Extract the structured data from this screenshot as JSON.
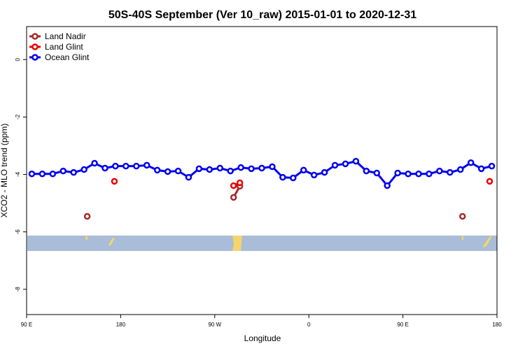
{
  "chart_data": {
    "type": "line",
    "title": "50S-40S September (Ver 10_raw)   2015-01-01 to 2020-12-31",
    "xlabel": "Longitude",
    "ylabel": "XCO2 - MLO trend (ppm)",
    "xlim": [
      90,
      540
    ],
    "ylim": [
      -8.88,
      1.15
    ],
    "xticks": [
      {
        "value": 90,
        "label": "90 E"
      },
      {
        "value": 180,
        "label": "180"
      },
      {
        "value": 270,
        "label": "90 W"
      },
      {
        "value": 360,
        "label": "0"
      },
      {
        "value": 450,
        "label": "90 E"
      },
      {
        "value": 540,
        "label": "180"
      }
    ],
    "yticks": [
      0,
      -2,
      -4,
      -6,
      -8
    ],
    "legend": "top-left",
    "series": [
      {
        "name": "Land Nadir",
        "color": "#a52a2a",
        "x": [
          148,
          288,
          294,
          507
        ],
        "values": [
          -5.46,
          -4.8,
          -4.41,
          -5.46
        ]
      },
      {
        "name": "Land Glint",
        "color": "#ee0000",
        "x": [
          174,
          288,
          294,
          533
        ],
        "values": [
          -4.24,
          -4.39,
          -4.29,
          -4.24
        ]
      },
      {
        "name": "Ocean Glint",
        "color": "#0000ee",
        "x": [
          95,
          105,
          115,
          125,
          135,
          145,
          155,
          165,
          175,
          185,
          195,
          205,
          215,
          225,
          235,
          245,
          255,
          265,
          275,
          285,
          295,
          305,
          315,
          325,
          335,
          345,
          355,
          365,
          375,
          385,
          395,
          405,
          415,
          425,
          435,
          445,
          455,
          465,
          475,
          485,
          495,
          505,
          515,
          525,
          535
        ],
        "values": [
          -3.98,
          -3.98,
          -3.98,
          -3.88,
          -3.93,
          -3.83,
          -3.61,
          -3.78,
          -3.71,
          -3.71,
          -3.71,
          -3.68,
          -3.85,
          -3.9,
          -3.88,
          -4.1,
          -3.8,
          -3.83,
          -3.78,
          -3.88,
          -3.76,
          -3.8,
          -3.78,
          -3.73,
          -4.1,
          -4.12,
          -3.85,
          -4.02,
          -3.93,
          -3.68,
          -3.63,
          -3.54,
          -3.88,
          -3.95,
          -4.39,
          -3.95,
          -3.98,
          -3.98,
          -3.98,
          -3.88,
          -3.93,
          -3.83,
          -3.59,
          -3.8,
          -3.71
        ]
      }
    ]
  }
}
